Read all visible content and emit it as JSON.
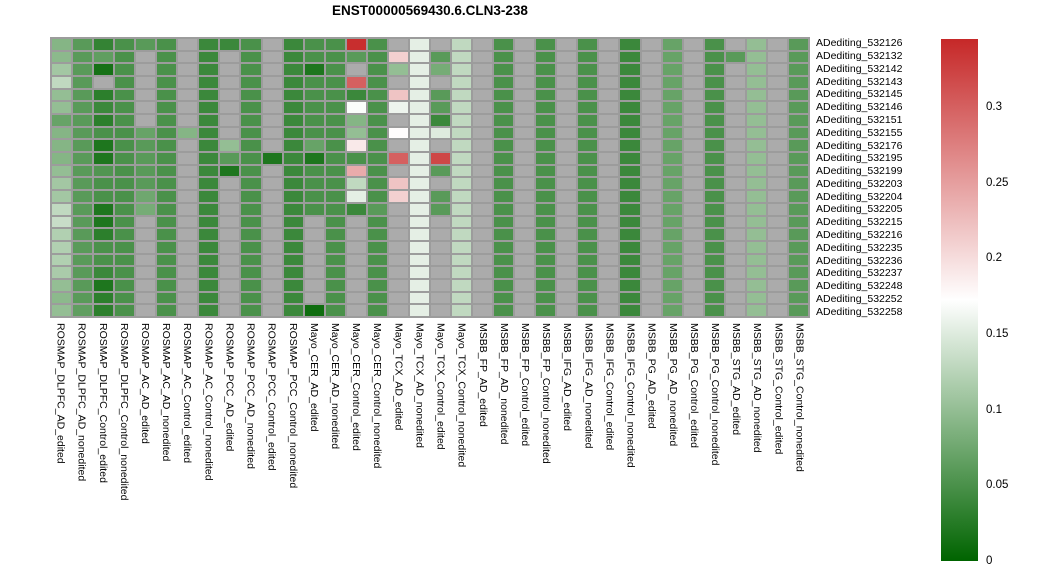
{
  "title": "ENST00000569430.6.CLN3-238",
  "legend": {
    "ticks": [
      "0.3",
      "0.25",
      "0.2",
      "0.15",
      "0.1",
      "0.05",
      "0"
    ],
    "tick_values": [
      0.3,
      0.25,
      0.2,
      0.15,
      0.1,
      0.05,
      0
    ],
    "min": 0,
    "max": 0.345,
    "colors": {
      "low": "#006400",
      "mid": "#FFFFFF",
      "high": "#C62828",
      "na": "#ABABAB",
      "border": "#9C9C9C"
    }
  },
  "chart_data": {
    "type": "heatmap",
    "title": "ENST00000569430.6.CLN3-238",
    "legend_position": "right",
    "value_scale": {
      "min": 0,
      "mid": 0.1725,
      "max": 0.345
    },
    "na_value": null,
    "rows": [
      "ADediting_532126",
      "ADediting_532132",
      "ADediting_532142",
      "ADediting_532143",
      "ADediting_532145",
      "ADediting_532146",
      "ADediting_532151",
      "ADediting_532155",
      "ADediting_532176",
      "ADediting_532195",
      "ADediting_532199",
      "ADediting_532203",
      "ADediting_532204",
      "ADediting_532205",
      "ADediting_532215",
      "ADediting_532216",
      "ADediting_532235",
      "ADediting_532236",
      "ADediting_532237",
      "ADediting_532248",
      "ADediting_532252",
      "ADediting_532258"
    ],
    "columns": [
      "ROSMAP_DLPFC_AD_edited",
      "ROSMAP_DLPFC_AD_nonedited",
      "ROSMAP_DLPFC_Control_edited",
      "ROSMAP_DLPFC_Control_nonedited",
      "ROSMAP_AC_AD_edited",
      "ROSMAP_AC_AD_nonedited",
      "ROSMAP_AC_Control_edited",
      "ROSMAP_AC_Control_nonedited",
      "ROSMAP_PCC_AD_edited",
      "ROSMAP_PCC_AD_nonedited",
      "ROSMAP_PCC_Control_edited",
      "ROSMAP_PCC_Control_nonedited",
      "Mayo_CER_AD_edited",
      "Mayo_CER_AD_nonedited",
      "Mayo_CER_Control_edited",
      "Mayo_CER_Control_nonedited",
      "Mayo_TCX_AD_edited",
      "Mayo_TCX_AD_nonedited",
      "Mayo_TCX_Control_edited",
      "Mayo_TCX_Control_nonedited",
      "MSBB_FP_AD_edited",
      "MSBB_FP_AD_nonedited",
      "MSBB_FP_Control_edited",
      "MSBB_FP_Control_nonedited",
      "MSBB_IFG_AD_edited",
      "MSBB_IFG_AD_nonedited",
      "MSBB_IFG_Control_edited",
      "MSBB_IFG_Control_nonedited",
      "MSBB_PG_AD_edited",
      "MSBB_PG_AD_nonedited",
      "MSBB_PG_Control_edited",
      "MSBB_PG_Control_nonedited",
      "MSBB_STG_AD_edited",
      "MSBB_STG_AD_nonedited",
      "MSBB_STG_Control_edited",
      "MSBB_STG_Control_nonedited"
    ],
    "values": [
      [
        0.09,
        0.06,
        0.035,
        0.05,
        0.06,
        0.05,
        null,
        0.04,
        0.04,
        0.05,
        null,
        0.04,
        0.05,
        0.05,
        0.34,
        0.05,
        null,
        0.155,
        null,
        0.13,
        null,
        0.05,
        null,
        0.05,
        null,
        0.05,
        null,
        0.04,
        null,
        0.07,
        null,
        0.05,
        null,
        0.1,
        null,
        0.06
      ],
      [
        0.095,
        0.06,
        0.065,
        0.05,
        null,
        0.05,
        null,
        0.04,
        null,
        0.05,
        null,
        0.04,
        0.05,
        0.05,
        0.06,
        0.05,
        0.21,
        0.155,
        0.06,
        0.13,
        null,
        0.05,
        null,
        0.05,
        null,
        0.05,
        null,
        0.04,
        null,
        0.07,
        null,
        0.05,
        0.06,
        0.1,
        null,
        0.06
      ],
      [
        0.11,
        0.06,
        0.015,
        0.05,
        null,
        0.05,
        null,
        0.04,
        null,
        0.05,
        null,
        0.04,
        0.02,
        0.05,
        null,
        0.05,
        0.1,
        0.155,
        0.08,
        0.13,
        null,
        0.05,
        null,
        0.05,
        null,
        0.05,
        null,
        0.04,
        null,
        0.07,
        null,
        0.05,
        null,
        0.1,
        null,
        0.06
      ],
      [
        0.13,
        0.06,
        null,
        0.05,
        null,
        0.05,
        null,
        0.04,
        null,
        0.05,
        null,
        0.04,
        0.05,
        0.05,
        0.3,
        0.05,
        null,
        0.155,
        null,
        0.13,
        null,
        0.05,
        null,
        0.05,
        null,
        0.05,
        null,
        0.04,
        null,
        0.07,
        null,
        0.05,
        null,
        0.1,
        null,
        0.06
      ],
      [
        0.1,
        0.06,
        0.03,
        0.05,
        null,
        0.05,
        null,
        0.04,
        null,
        0.05,
        null,
        0.04,
        0.05,
        0.05,
        0.04,
        0.05,
        0.22,
        0.155,
        0.06,
        0.13,
        null,
        0.05,
        null,
        0.05,
        null,
        0.05,
        null,
        0.04,
        null,
        0.07,
        null,
        0.05,
        null,
        0.1,
        null,
        0.06
      ],
      [
        0.1,
        0.06,
        0.04,
        0.05,
        null,
        0.05,
        null,
        0.04,
        null,
        0.05,
        null,
        0.04,
        0.05,
        0.05,
        0.17,
        0.05,
        0.16,
        0.155,
        0.06,
        0.13,
        null,
        0.05,
        null,
        0.05,
        null,
        0.05,
        null,
        0.04,
        null,
        0.07,
        null,
        0.05,
        null,
        0.1,
        null,
        0.06
      ],
      [
        0.07,
        0.06,
        0.03,
        0.05,
        null,
        0.05,
        null,
        0.04,
        null,
        0.05,
        null,
        0.04,
        0.05,
        0.05,
        0.09,
        0.05,
        null,
        0.155,
        0.04,
        0.13,
        null,
        0.05,
        null,
        0.05,
        null,
        0.05,
        null,
        0.04,
        null,
        0.07,
        null,
        0.05,
        null,
        0.1,
        null,
        0.06
      ],
      [
        0.09,
        0.06,
        0.05,
        0.05,
        0.07,
        0.05,
        0.09,
        0.04,
        null,
        0.05,
        null,
        0.04,
        0.05,
        0.05,
        0.1,
        0.05,
        0.175,
        0.155,
        0.15,
        0.13,
        null,
        0.05,
        null,
        0.05,
        null,
        0.05,
        null,
        0.04,
        null,
        0.07,
        null,
        0.05,
        null,
        0.1,
        null,
        0.06
      ],
      [
        0.09,
        0.06,
        0.02,
        0.05,
        0.06,
        0.05,
        null,
        0.04,
        0.1,
        0.05,
        null,
        0.04,
        0.07,
        0.05,
        0.19,
        0.05,
        null,
        0.155,
        null,
        0.13,
        null,
        0.05,
        null,
        0.05,
        null,
        0.05,
        null,
        0.04,
        null,
        0.07,
        null,
        0.05,
        null,
        0.1,
        null,
        0.06
      ],
      [
        0.09,
        0.06,
        0.02,
        0.05,
        0.06,
        0.05,
        null,
        0.04,
        0.06,
        0.05,
        0.02,
        0.04,
        0.02,
        0.05,
        0.05,
        0.05,
        0.3,
        0.155,
        0.32,
        0.13,
        null,
        0.05,
        null,
        0.05,
        null,
        0.05,
        null,
        0.04,
        null,
        0.07,
        null,
        0.05,
        null,
        0.1,
        null,
        0.06
      ],
      [
        0.1,
        0.06,
        0.055,
        0.05,
        0.06,
        0.05,
        null,
        0.04,
        0.02,
        0.05,
        null,
        0.04,
        0.05,
        0.05,
        0.24,
        0.05,
        null,
        0.155,
        0.06,
        0.13,
        null,
        0.05,
        null,
        0.05,
        null,
        0.05,
        null,
        0.04,
        null,
        0.07,
        null,
        0.05,
        null,
        0.1,
        null,
        0.06
      ],
      [
        0.11,
        0.06,
        0.05,
        0.05,
        0.06,
        0.05,
        null,
        0.04,
        null,
        0.05,
        null,
        0.04,
        0.05,
        0.05,
        0.13,
        0.05,
        0.22,
        0.155,
        null,
        0.13,
        null,
        0.05,
        null,
        0.05,
        null,
        0.05,
        null,
        0.04,
        null,
        0.07,
        null,
        0.05,
        null,
        0.1,
        null,
        0.06
      ],
      [
        0.11,
        0.06,
        0.05,
        0.05,
        0.075,
        0.05,
        null,
        0.04,
        null,
        0.05,
        null,
        0.04,
        0.05,
        0.05,
        0.155,
        0.05,
        0.21,
        0.155,
        0.06,
        0.13,
        null,
        0.05,
        null,
        0.05,
        null,
        0.05,
        null,
        0.04,
        null,
        0.07,
        null,
        0.05,
        null,
        0.1,
        null,
        0.06
      ],
      [
        0.13,
        0.06,
        0.02,
        0.05,
        0.08,
        0.05,
        null,
        0.04,
        null,
        0.05,
        null,
        0.04,
        0.05,
        0.05,
        0.04,
        0.06,
        null,
        0.155,
        0.06,
        0.13,
        null,
        0.05,
        null,
        0.05,
        null,
        0.05,
        null,
        0.04,
        null,
        0.07,
        null,
        0.05,
        null,
        0.1,
        null,
        0.06
      ],
      [
        0.135,
        0.06,
        0.02,
        0.05,
        null,
        0.05,
        null,
        0.04,
        null,
        0.05,
        null,
        0.04,
        null,
        0.05,
        null,
        0.05,
        null,
        0.155,
        null,
        0.13,
        null,
        0.05,
        null,
        0.05,
        null,
        0.05,
        null,
        0.04,
        null,
        0.07,
        null,
        0.05,
        null,
        0.1,
        null,
        0.06
      ],
      [
        0.12,
        0.06,
        0.03,
        0.05,
        null,
        0.05,
        null,
        0.04,
        null,
        0.05,
        null,
        0.04,
        null,
        0.05,
        null,
        0.05,
        null,
        0.155,
        null,
        0.13,
        null,
        0.05,
        null,
        0.05,
        null,
        0.05,
        null,
        0.04,
        null,
        0.07,
        null,
        0.05,
        null,
        0.1,
        null,
        0.06
      ],
      [
        0.12,
        0.06,
        0.05,
        0.05,
        null,
        0.05,
        null,
        0.04,
        null,
        0.05,
        null,
        0.04,
        null,
        0.05,
        null,
        0.05,
        null,
        0.155,
        null,
        0.13,
        null,
        0.05,
        null,
        0.05,
        null,
        0.05,
        null,
        0.04,
        null,
        0.07,
        null,
        0.05,
        null,
        0.1,
        null,
        0.06
      ],
      [
        0.12,
        0.06,
        0.05,
        0.05,
        null,
        0.05,
        null,
        0.04,
        null,
        0.05,
        null,
        0.04,
        null,
        0.05,
        null,
        0.05,
        null,
        0.155,
        null,
        0.13,
        null,
        0.05,
        null,
        0.05,
        null,
        0.05,
        null,
        0.04,
        null,
        0.07,
        null,
        0.05,
        null,
        0.1,
        null,
        0.06
      ],
      [
        0.115,
        0.06,
        0.04,
        0.05,
        null,
        0.05,
        null,
        0.04,
        null,
        0.05,
        null,
        0.04,
        null,
        0.05,
        null,
        0.05,
        null,
        0.155,
        null,
        0.13,
        null,
        0.05,
        null,
        0.05,
        null,
        0.05,
        null,
        0.04,
        null,
        0.07,
        null,
        0.05,
        null,
        0.1,
        null,
        0.06
      ],
      [
        0.1,
        0.06,
        0.02,
        0.05,
        null,
        0.05,
        null,
        0.04,
        null,
        0.05,
        null,
        0.04,
        null,
        0.05,
        null,
        0.05,
        null,
        0.155,
        null,
        0.13,
        null,
        0.05,
        null,
        0.05,
        null,
        0.05,
        null,
        0.04,
        null,
        0.07,
        null,
        0.05,
        null,
        0.1,
        null,
        0.06
      ],
      [
        0.095,
        0.06,
        0.03,
        0.05,
        null,
        0.05,
        null,
        0.04,
        null,
        0.05,
        null,
        0.04,
        null,
        0.05,
        null,
        0.05,
        null,
        0.155,
        null,
        0.13,
        null,
        0.05,
        null,
        0.05,
        null,
        0.05,
        null,
        0.04,
        null,
        0.07,
        null,
        0.05,
        null,
        0.1,
        null,
        0.06
      ],
      [
        0.1,
        0.065,
        0.03,
        0.05,
        null,
        0.05,
        null,
        0.04,
        null,
        0.05,
        null,
        0.04,
        0.01,
        0.05,
        null,
        0.05,
        null,
        0.155,
        null,
        0.13,
        null,
        0.05,
        null,
        0.05,
        null,
        0.05,
        null,
        0.04,
        null,
        0.07,
        null,
        0.05,
        null,
        0.1,
        null,
        0.06
      ]
    ]
  }
}
